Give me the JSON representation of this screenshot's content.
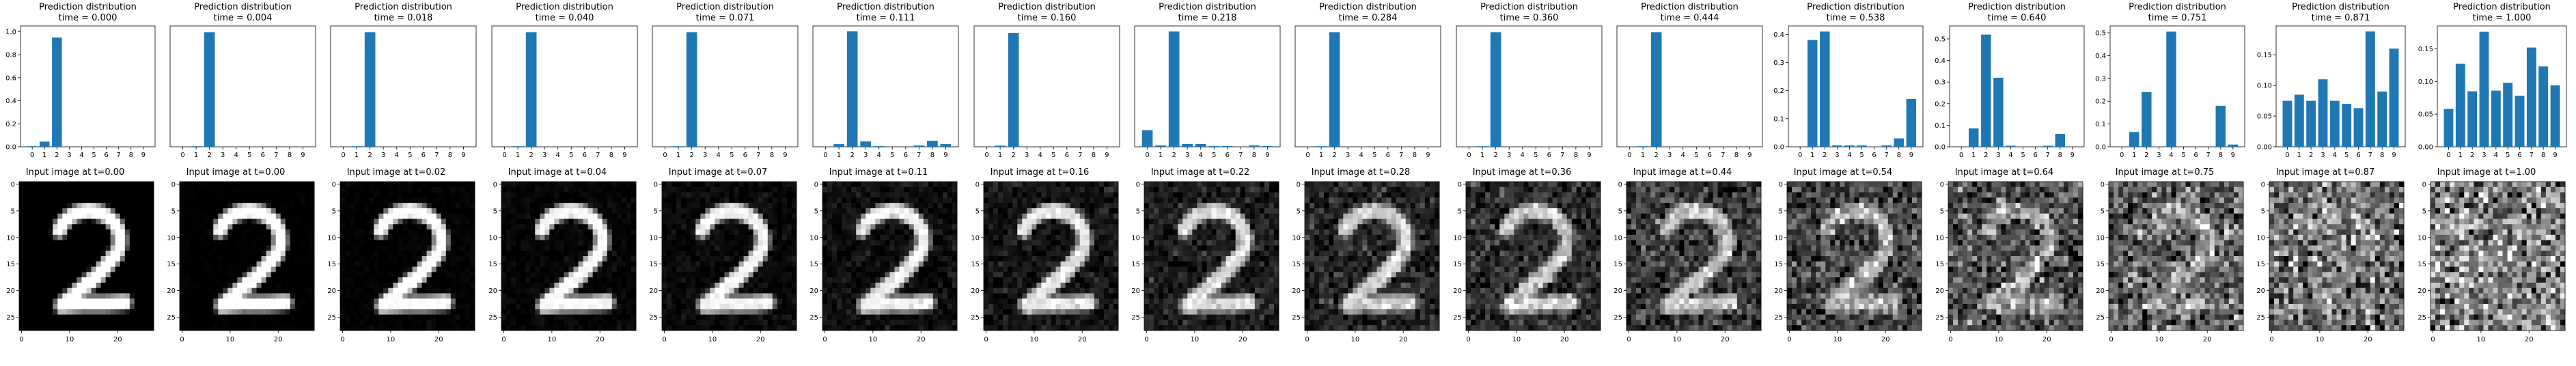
{
  "colors": {
    "bar": "#1f77b4",
    "axis": "#000000"
  },
  "bar_title_line1": "Prediction distribution",
  "bar_categories": [
    "0",
    "1",
    "2",
    "3",
    "4",
    "5",
    "6",
    "7",
    "8",
    "9"
  ],
  "image_xticks": [
    "0",
    "10",
    "20"
  ],
  "image_yticks": [
    "0",
    "5",
    "10",
    "15",
    "20",
    "25"
  ],
  "image_pixels": "28x28 grayscale",
  "image_colormap": "gray",
  "chart_data": [
    {
      "type": "bar",
      "title": "Prediction distribution\ntime = 0.000",
      "t": 0.0,
      "categories": [
        "0",
        "1",
        "2",
        "3",
        "4",
        "5",
        "6",
        "7",
        "8",
        "9"
      ],
      "values": [
        0.005,
        0.045,
        0.95,
        0.0,
        0.0,
        0.0,
        0.0,
        0.0,
        0.0,
        0.0
      ],
      "ylim": [
        0,
        1.05
      ],
      "yticks": [
        "0.0",
        "0.2",
        "0.4",
        "0.6",
        "0.8",
        "1.0"
      ],
      "image_title": "Input image at t=0.00"
    },
    {
      "type": "bar",
      "title": "Prediction distribution\ntime = 0.004",
      "t": 0.004,
      "categories": [
        "0",
        "1",
        "2",
        "3",
        "4",
        "5",
        "6",
        "7",
        "8",
        "9"
      ],
      "values": [
        0.0,
        0.005,
        0.995,
        0.0,
        0.0,
        0.0,
        0.0,
        0.0,
        0.0,
        0.0
      ],
      "ylim": [
        0,
        1.05
      ],
      "yticks": [],
      "image_title": "Input image at t=0.00"
    },
    {
      "type": "bar",
      "title": "Prediction distribution\ntime = 0.018",
      "t": 0.018,
      "categories": [
        "0",
        "1",
        "2",
        "3",
        "4",
        "5",
        "6",
        "7",
        "8",
        "9"
      ],
      "values": [
        0.0,
        0.005,
        0.995,
        0.0,
        0.0,
        0.0,
        0.0,
        0.0,
        0.0,
        0.0
      ],
      "ylim": [
        0,
        1.05
      ],
      "yticks": [],
      "image_title": "Input image at t=0.02"
    },
    {
      "type": "bar",
      "title": "Prediction distribution\ntime = 0.040",
      "t": 0.04,
      "categories": [
        "0",
        "1",
        "2",
        "3",
        "4",
        "5",
        "6",
        "7",
        "8",
        "9"
      ],
      "values": [
        0.0,
        0.005,
        0.995,
        0.0,
        0.0,
        0.0,
        0.0,
        0.0,
        0.0,
        0.0
      ],
      "ylim": [
        0,
        1.05
      ],
      "yticks": [],
      "image_title": "Input image at t=0.04"
    },
    {
      "type": "bar",
      "title": "Prediction distribution\ntime = 0.071",
      "t": 0.071,
      "categories": [
        "0",
        "1",
        "2",
        "3",
        "4",
        "5",
        "6",
        "7",
        "8",
        "9"
      ],
      "values": [
        0.0,
        0.005,
        0.995,
        0.0,
        0.0,
        0.0,
        0.0,
        0.0,
        0.0,
        0.0
      ],
      "ylim": [
        0,
        1.05
      ],
      "yticks": [],
      "image_title": "Input image at t=0.07"
    },
    {
      "type": "bar",
      "title": "Prediction distribution\ntime = 0.111",
      "t": 0.111,
      "categories": [
        "0",
        "1",
        "2",
        "3",
        "4",
        "5",
        "6",
        "7",
        "8",
        "9"
      ],
      "values": [
        0.0,
        0.02,
        0.86,
        0.04,
        0.005,
        0.0,
        0.0,
        0.01,
        0.045,
        0.02
      ],
      "ylim": [
        0,
        0.9
      ],
      "yticks": [],
      "image_title": "Input image at t=0.11"
    },
    {
      "type": "bar",
      "title": "Prediction distribution\ntime = 0.160",
      "t": 0.16,
      "categories": [
        "0",
        "1",
        "2",
        "3",
        "4",
        "5",
        "6",
        "7",
        "8",
        "9"
      ],
      "values": [
        0.0,
        0.01,
        0.99,
        0.0,
        0.0,
        0.0,
        0.0,
        0.0,
        0.0,
        0.0
      ],
      "ylim": [
        0,
        1.05
      ],
      "yticks": [],
      "image_title": "Input image at t=0.16"
    },
    {
      "type": "bar",
      "title": "Prediction distribution\ntime = 0.218",
      "t": 0.218,
      "categories": [
        "0",
        "1",
        "2",
        "3",
        "4",
        "5",
        "6",
        "7",
        "8",
        "9"
      ],
      "values": [
        0.12,
        0.01,
        0.83,
        0.02,
        0.02,
        0.005,
        0.005,
        0.0,
        0.01,
        0.005
      ],
      "ylim": [
        0,
        0.87
      ],
      "yticks": [],
      "image_title": "Input image at t=0.22"
    },
    {
      "type": "bar",
      "title": "Prediction distribution\ntime = 0.284",
      "t": 0.284,
      "categories": [
        "0",
        "1",
        "2",
        "3",
        "4",
        "5",
        "6",
        "7",
        "8",
        "9"
      ],
      "values": [
        0.0,
        0.005,
        0.995,
        0.0,
        0.0,
        0.0,
        0.0,
        0.0,
        0.0,
        0.0
      ],
      "ylim": [
        0,
        1.05
      ],
      "yticks": [],
      "image_title": "Input image at t=0.28"
    },
    {
      "type": "bar",
      "title": "Prediction distribution\ntime = 0.360",
      "t": 0.36,
      "categories": [
        "0",
        "1",
        "2",
        "3",
        "4",
        "5",
        "6",
        "7",
        "8",
        "9"
      ],
      "values": [
        0.0,
        0.005,
        0.995,
        0.0,
        0.0,
        0.0,
        0.0,
        0.0,
        0.0,
        0.0
      ],
      "ylim": [
        0,
        1.05
      ],
      "yticks": [],
      "image_title": "Input image at t=0.36"
    },
    {
      "type": "bar",
      "title": "Prediction distribution\ntime = 0.444",
      "t": 0.444,
      "categories": [
        "0",
        "1",
        "2",
        "3",
        "4",
        "5",
        "6",
        "7",
        "8",
        "9"
      ],
      "values": [
        0.0,
        0.005,
        0.995,
        0.0,
        0.0,
        0.0,
        0.0,
        0.0,
        0.0,
        0.0
      ],
      "ylim": [
        0,
        1.05
      ],
      "yticks": [],
      "image_title": "Input image at t=0.44"
    },
    {
      "type": "bar",
      "title": "Prediction distribution\ntime = 0.538",
      "t": 0.538,
      "categories": [
        "0",
        "1",
        "2",
        "3",
        "4",
        "5",
        "6",
        "7",
        "8",
        "9"
      ],
      "values": [
        0.0,
        0.38,
        0.41,
        0.005,
        0.005,
        0.005,
        0.0,
        0.005,
        0.03,
        0.17
      ],
      "ylim": [
        0,
        0.43
      ],
      "yticks": [
        "0.0",
        "0.1",
        "0.2",
        "0.3",
        "0.4"
      ],
      "image_title": "Input image at t=0.54"
    },
    {
      "type": "bar",
      "title": "Prediction distribution\ntime = 0.640",
      "t": 0.64,
      "categories": [
        "0",
        "1",
        "2",
        "3",
        "4",
        "5",
        "6",
        "7",
        "8",
        "9"
      ],
      "values": [
        0.0,
        0.085,
        0.52,
        0.32,
        0.005,
        0.0,
        0.0,
        0.005,
        0.06,
        0.0
      ],
      "ylim": [
        0,
        0.56
      ],
      "yticks": [
        "0.0",
        "0.1",
        "0.2",
        "0.3",
        "0.4",
        "0.5"
      ],
      "image_title": "Input image at t=0.64"
    },
    {
      "type": "bar",
      "title": "Prediction distribution\ntime = 0.751",
      "t": 0.751,
      "categories": [
        "0",
        "1",
        "2",
        "3",
        "4",
        "5",
        "6",
        "7",
        "8",
        "9"
      ],
      "values": [
        0.0,
        0.065,
        0.24,
        0.0,
        0.505,
        0.0,
        0.0,
        0.0,
        0.18,
        0.01
      ],
      "ylim": [
        0,
        0.53
      ],
      "yticks": [
        "0.0",
        "0.1",
        "0.2",
        "0.3",
        "0.4",
        "0.5"
      ],
      "image_title": "Input image at t=0.75"
    },
    {
      "type": "bar",
      "title": "Prediction distribution\ntime = 0.871",
      "t": 0.871,
      "categories": [
        "0",
        "1",
        "2",
        "3",
        "4",
        "5",
        "6",
        "7",
        "8",
        "9"
      ],
      "values": [
        0.075,
        0.085,
        0.075,
        0.11,
        0.075,
        0.07,
        0.063,
        0.188,
        0.09,
        0.16
      ],
      "ylim": [
        0,
        0.197
      ],
      "yticks": [
        "0.00",
        "0.05",
        "0.10",
        "0.15"
      ],
      "image_title": "Input image at t=0.87"
    },
    {
      "type": "bar",
      "title": "Prediction distribution\ntime = 1.000",
      "t": 1.0,
      "categories": [
        "0",
        "1",
        "2",
        "3",
        "4",
        "5",
        "6",
        "7",
        "8",
        "9"
      ],
      "values": [
        0.058,
        0.127,
        0.085,
        0.176,
        0.086,
        0.098,
        0.078,
        0.152,
        0.123,
        0.094
      ],
      "ylim": [
        0,
        0.185
      ],
      "yticks": [
        "0.00",
        "0.05",
        "0.10",
        "0.15"
      ],
      "image_title": "Input image at t=1.00"
    }
  ]
}
